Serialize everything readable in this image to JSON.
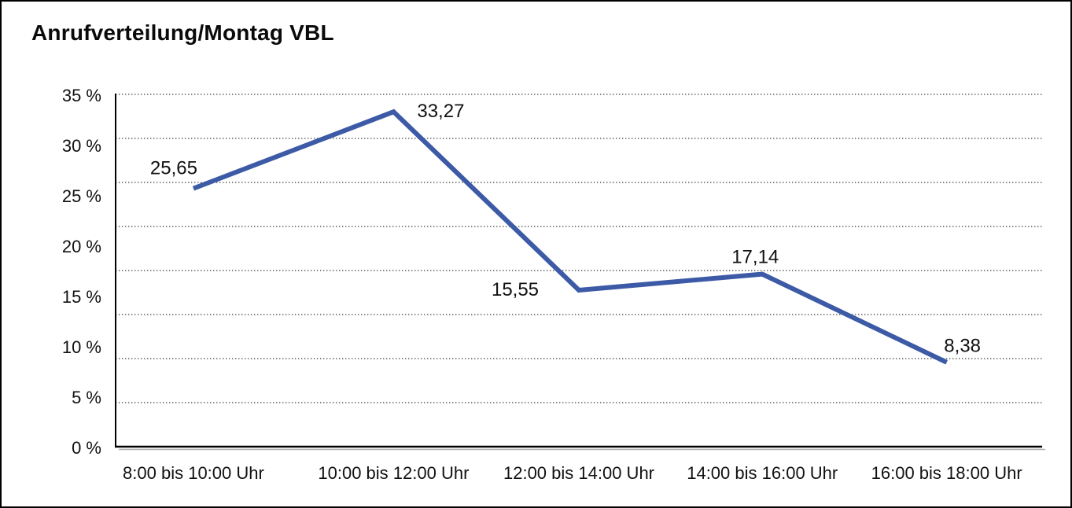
{
  "chart_data": {
    "type": "line",
    "title": "Anrufverteilung/Montag VBL",
    "categories": [
      "8:00 bis 10:00 Uhr",
      "10:00 bis 12:00 Uhr",
      "12:00 bis 14:00 Uhr",
      "14:00 bis 16:00 Uhr",
      "16:00 bis 18:00 Uhr"
    ],
    "values": [
      25.65,
      33.27,
      15.55,
      17.14,
      8.38
    ],
    "value_labels": [
      "25,65",
      "33,27",
      "15,55",
      "17,14",
      "8,38"
    ],
    "xlabel": "",
    "ylabel": "",
    "ylim": [
      0,
      35
    ],
    "y_tick_step": 5,
    "y_tick_labels": [
      "0 %",
      "5 %",
      "10 %",
      "15 %",
      "20 %",
      "25 %",
      "30 %",
      "35 %"
    ],
    "grid_divisions": 8,
    "grid": "dotted-horizontal",
    "legend": "none",
    "line_color": "#3C5AA6",
    "axis_color": "#000000",
    "axis_shadow_color": "#ababab",
    "gridline_color": "#3a3a3a",
    "text_color": "#111111"
  }
}
